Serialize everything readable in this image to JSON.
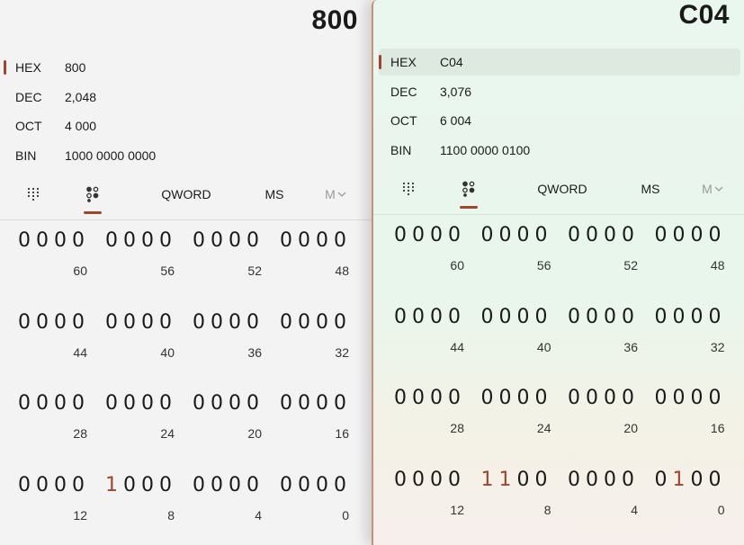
{
  "left": {
    "display": "800",
    "radix": [
      {
        "label": "HEX",
        "value": "800",
        "selected": true
      },
      {
        "label": "DEC",
        "value": "2,048",
        "selected": false
      },
      {
        "label": "OCT",
        "value": "4 000",
        "selected": false
      },
      {
        "label": "BIN",
        "value": "1000 0000 0000",
        "selected": false
      }
    ],
    "toolbar": {
      "word_size": "QWORD",
      "memory_store": "MS",
      "memory_menu": "M"
    },
    "nibbles": [
      [
        "0000",
        "0000",
        "0000",
        "0000"
      ],
      [
        "0000",
        "0000",
        "0000",
        "0000"
      ],
      [
        "0000",
        "0000",
        "0000",
        "0000"
      ],
      [
        "0000",
        "1000",
        "0000",
        "0000"
      ]
    ],
    "positions": [
      [
        "60",
        "56",
        "52",
        "48"
      ],
      [
        "44",
        "40",
        "36",
        "32"
      ],
      [
        "28",
        "24",
        "20",
        "16"
      ],
      [
        "12",
        "8",
        "4",
        "0"
      ]
    ]
  },
  "right": {
    "display": "C04",
    "radix": [
      {
        "label": "HEX",
        "value": "C04",
        "selected": true
      },
      {
        "label": "DEC",
        "value": "3,076",
        "selected": false
      },
      {
        "label": "OCT",
        "value": "6 004",
        "selected": false
      },
      {
        "label": "BIN",
        "value": "1100 0000 0100",
        "selected": false
      }
    ],
    "toolbar": {
      "word_size": "QWORD",
      "memory_store": "MS",
      "memory_menu": "M"
    },
    "nibbles": [
      [
        "0000",
        "0000",
        "0000",
        "0000"
      ],
      [
        "0000",
        "0000",
        "0000",
        "0000"
      ],
      [
        "0000",
        "0000",
        "0000",
        "0000"
      ],
      [
        "0000",
        "1100",
        "0000",
        "0100"
      ]
    ],
    "positions": [
      [
        "60",
        "56",
        "52",
        "48"
      ],
      [
        "44",
        "40",
        "36",
        "32"
      ],
      [
        "28",
        "24",
        "20",
        "16"
      ],
      [
        "12",
        "8",
        "4",
        "0"
      ]
    ]
  },
  "colors": {
    "accent": "#a0442c",
    "left_bg": "#f3f3f3",
    "right_bg": "#eaf7ee"
  },
  "icons": {
    "keypad": "keypad-icon",
    "bit_toggle": "bit-toggle-icon",
    "memory_chevron": "chevron-down-icon"
  }
}
